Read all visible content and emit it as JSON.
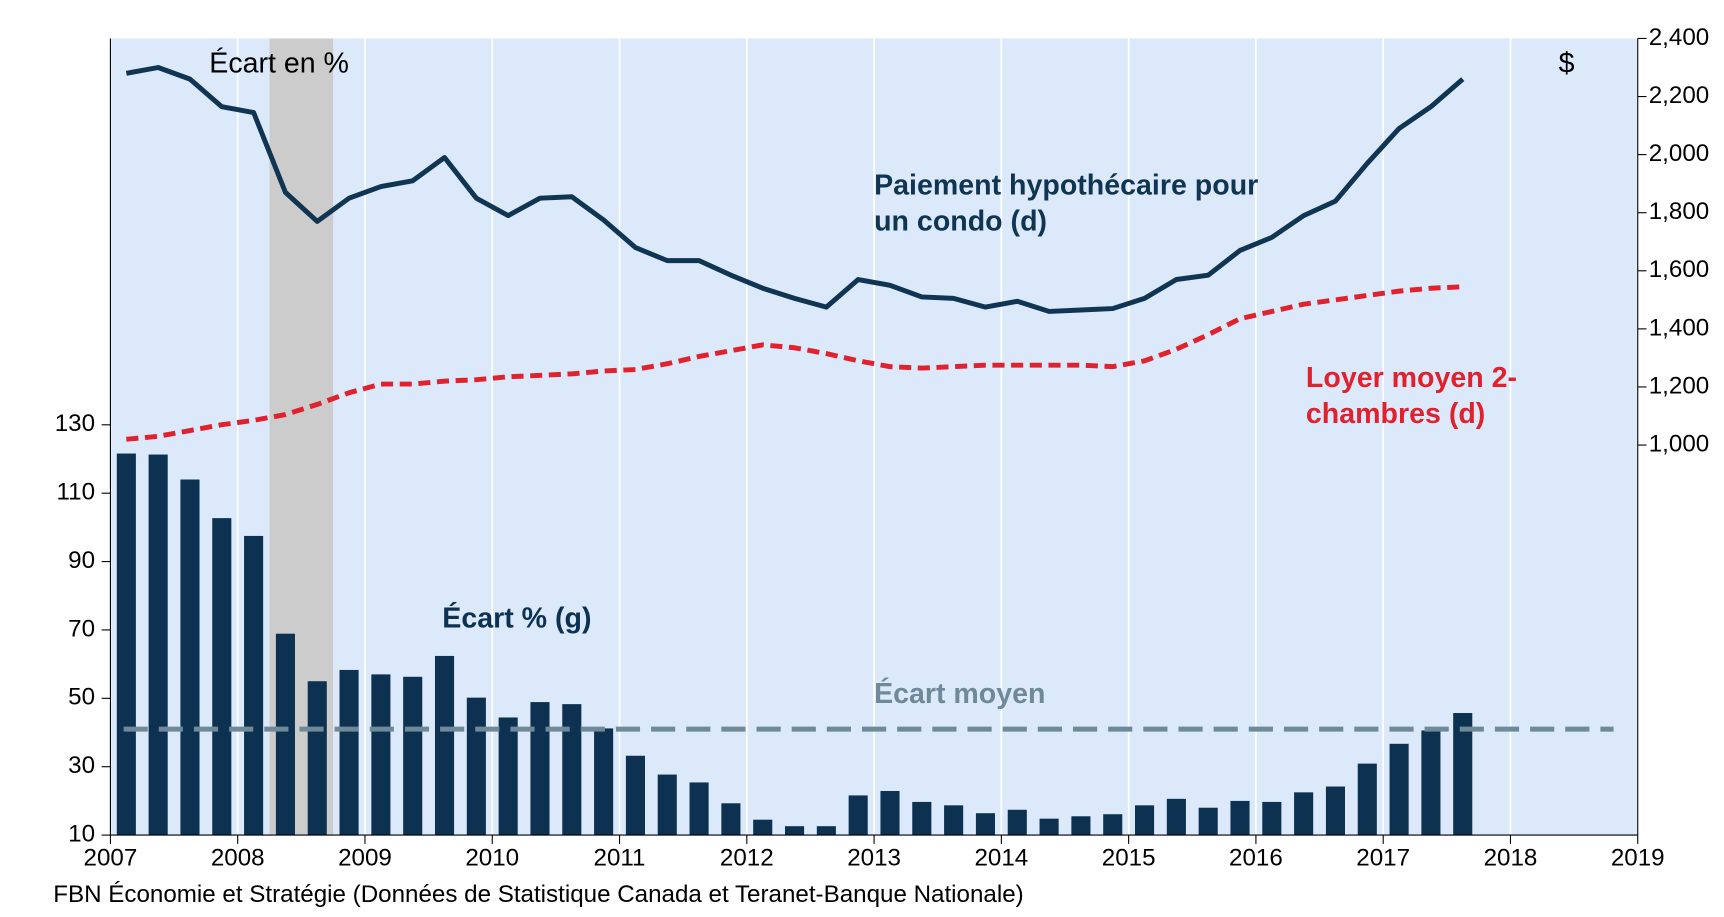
{
  "chart_data": {
    "type": "bar",
    "annotations": [
      "Écart en %",
      "$"
    ],
    "source": "FBN Économie et Stratégie (Données de Statistique Canada et Teranet-Banque Nationale)",
    "x": [
      2007.125,
      2007.375,
      2007.625,
      2007.875,
      2008.125,
      2008.375,
      2008.625,
      2008.875,
      2009.125,
      2009.375,
      2009.625,
      2009.875,
      2010.125,
      2010.375,
      2010.625,
      2010.875,
      2011.125,
      2011.375,
      2011.625,
      2011.875,
      2012.125,
      2012.375,
      2012.625,
      2012.875,
      2013.125,
      2013.375,
      2013.625,
      2013.875,
      2014.125,
      2014.375,
      2014.625,
      2014.875,
      2015.125,
      2015.375,
      2015.625,
      2015.875,
      2016.125,
      2016.375,
      2016.625,
      2016.875,
      2017.125,
      2017.375,
      2017.625
    ],
    "series": [
      {
        "name": "Écart % (g)",
        "type": "bar",
        "axis": "y",
        "color": "#0d3150",
        "values": [
          121.6,
          121.3,
          114,
          102.7,
          97.5,
          68.9,
          55,
          58.3,
          57,
          56.3,
          62.4,
          50.2,
          44.4,
          48.9,
          48.3,
          41.2,
          33.2,
          27.7,
          25.4,
          19.3,
          14.5,
          12.6,
          12.6,
          21.6,
          22.9,
          19.7,
          18.7,
          16.4,
          17.4,
          14.8,
          15.5,
          16.1,
          18.7,
          20.6,
          18,
          20,
          19.7,
          22.5,
          24.2,
          30.9,
          36.7,
          40.6,
          45.7
        ]
      },
      {
        "name": "Paiement hypothécaire pour un condo (d)",
        "type": "line",
        "axis": "y2",
        "color": "#0f3552",
        "dashed": false,
        "values": [
          2280,
          2300,
          2260,
          2165,
          2145,
          1870,
          1770,
          1850,
          1890,
          1910,
          1990,
          1850,
          1790,
          1850,
          1855,
          1775,
          1680,
          1635,
          1635,
          1585,
          1540,
          1505,
          1475,
          1570,
          1550,
          1510,
          1505,
          1475,
          1495,
          1460,
          1465,
          1470,
          1505,
          1570,
          1585,
          1670,
          1715,
          1790,
          1840,
          1970,
          2090,
          2165,
          2260
        ]
      },
      {
        "name": "Loyer moyen 2-chambres (d)",
        "type": "line",
        "axis": "y2",
        "color": "#e0212e",
        "dashed": true,
        "values": [
          1020,
          1030,
          1050,
          1070,
          1085,
          1105,
          1140,
          1180,
          1210,
          1210,
          1220,
          1225,
          1235,
          1240,
          1245,
          1255,
          1260,
          1280,
          1305,
          1325,
          1345,
          1335,
          1315,
          1290,
          1270,
          1265,
          1270,
          1275,
          1275,
          1275,
          1275,
          1270,
          1290,
          1330,
          1380,
          1435,
          1460,
          1485,
          1500,
          1515,
          1530,
          1540,
          1545
        ]
      }
    ],
    "reference_lines": [
      {
        "label": "Écart moyen",
        "value": 41,
        "axis": "y",
        "color": "#6e8a99"
      }
    ],
    "shaded_regions": [
      [
        2008.25,
        2008.75
      ]
    ],
    "xlim": [
      2007,
      2019
    ],
    "xticks": [
      2007,
      2008,
      2009,
      2010,
      2011,
      2012,
      2013,
      2014,
      2015,
      2016,
      2017,
      2018,
      2019
    ],
    "ylim": [
      10,
      243
    ],
    "yticks": [
      10,
      30,
      50,
      70,
      90,
      110,
      130
    ],
    "y2lim": [
      -343,
      2400
    ],
    "y2ticks": [
      {
        "value": 1000,
        "label": "1,000"
      },
      {
        "value": 1200,
        "label": "1,200"
      },
      {
        "value": 1400,
        "label": "1,400"
      },
      {
        "value": 1600,
        "label": "1,600"
      },
      {
        "value": 1800,
        "label": "1,800"
      },
      {
        "value": 2000,
        "label": "2,000"
      },
      {
        "value": 2200,
        "label": "2,200"
      },
      {
        "value": 2400,
        "label": "2,400"
      }
    ],
    "grid": true,
    "background": "#dce9fb"
  }
}
